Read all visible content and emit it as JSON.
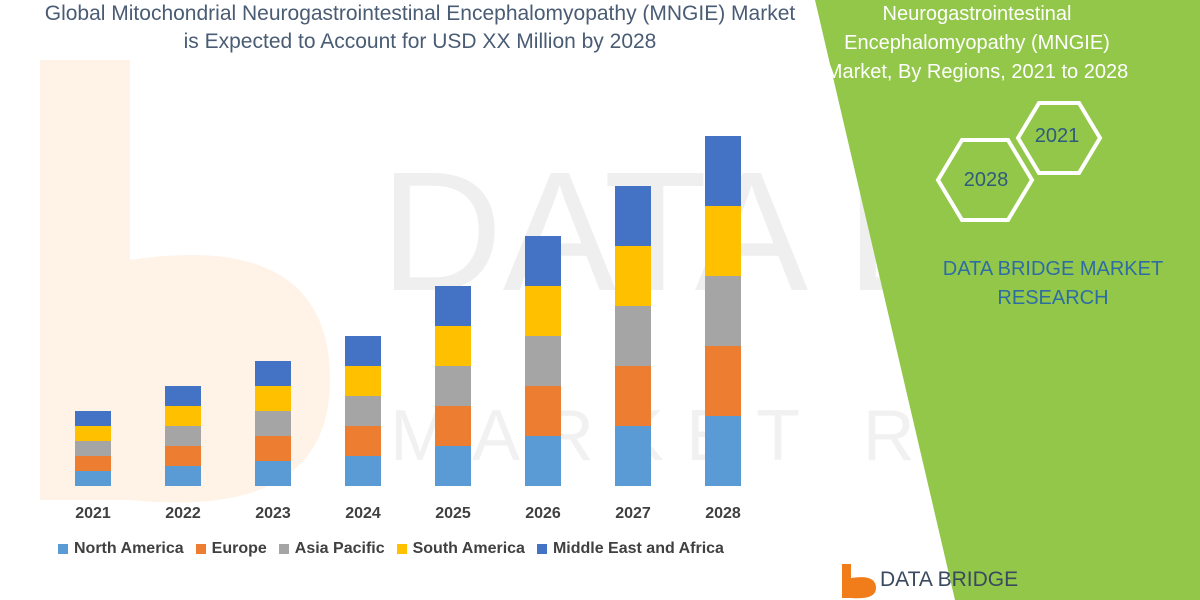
{
  "header": {
    "title": "Global Mitochondrial Neurogastrointestinal Encephalomyopathy (MNGIE) Market is Expected to Account for USD XX Million by 2028"
  },
  "side_panel": {
    "title": "Neurogastrointestinal Encephalomyopathy (MNGIE) Market, By Regions,  2021 to 2028",
    "hex_small": "2021",
    "hex_large": "2028",
    "brand": "DATA BRIDGE MARKET RESEARCH",
    "logo_text": "DATA BRIDGE",
    "panel_color": "#92c74a"
  },
  "watermark": {
    "text": "DATA BRIDGE",
    "subtext": "MARKET RESEARCH"
  },
  "chart_data": {
    "type": "bar",
    "stacked": true,
    "categories": [
      "2021",
      "2022",
      "2023",
      "2024",
      "2025",
      "2026",
      "2027",
      "2028"
    ],
    "series": [
      {
        "name": "North America",
        "color": "#5b9bd5",
        "values": [
          3,
          4,
          5,
          6,
          8,
          10,
          12,
          14
        ]
      },
      {
        "name": "Europe",
        "color": "#ed7d31",
        "values": [
          3,
          4,
          5,
          6,
          8,
          10,
          12,
          14
        ]
      },
      {
        "name": "Asia Pacific",
        "color": "#a5a5a5",
        "values": [
          3,
          4,
          5,
          6,
          8,
          10,
          12,
          14
        ]
      },
      {
        "name": "South America",
        "color": "#ffc000",
        "values": [
          3,
          4,
          5,
          6,
          8,
          10,
          12,
          14
        ]
      },
      {
        "name": "Middle East and Africa",
        "color": "#4472c4",
        "values": [
          3,
          4,
          5,
          6,
          8,
          10,
          12,
          14
        ]
      }
    ],
    "ylim": [
      0,
      70
    ],
    "grid": false,
    "legend_position": "bottom"
  }
}
